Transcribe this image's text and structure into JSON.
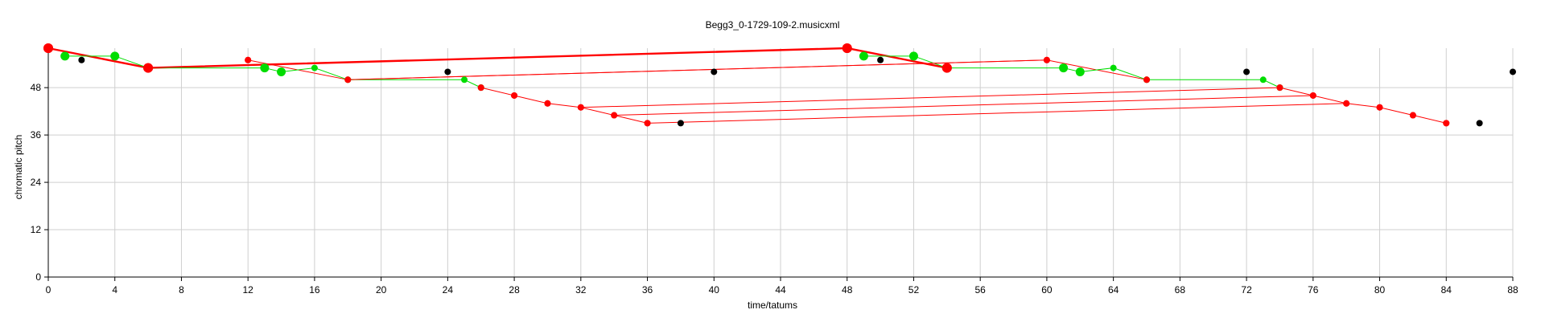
{
  "chart_data": {
    "type": "scatter",
    "title": "Begg3_0-1729-109-2.musicxml",
    "xlabel": "time/tatums",
    "ylabel": "chromatic pitch",
    "xlim": [
      0,
      88
    ],
    "ylim": [
      0,
      58
    ],
    "xticks": [
      0,
      4,
      8,
      12,
      16,
      20,
      24,
      28,
      32,
      36,
      40,
      44,
      48,
      52,
      56,
      60,
      64,
      68,
      72,
      76,
      80,
      84,
      88
    ],
    "yticks": [
      0,
      12,
      24,
      36,
      48
    ],
    "grid": true,
    "colors": {
      "red": "#ff0000",
      "green": "#00dd00",
      "black": "#000000"
    },
    "series": [
      {
        "color": "red",
        "values": [
          [
            0,
            58
          ],
          [
            6,
            53
          ],
          [
            48,
            58
          ],
          [
            54,
            53
          ]
        ],
        "marker": "large",
        "connect": "bold"
      },
      {
        "color": "red",
        "values": [
          [
            12,
            55
          ],
          [
            18,
            50
          ],
          [
            60,
            55
          ],
          [
            66,
            50
          ]
        ],
        "marker": "small",
        "connect": "thin"
      },
      {
        "color": "red",
        "values": [
          [
            26,
            48
          ],
          [
            28,
            46
          ],
          [
            30,
            44
          ],
          [
            32,
            43
          ],
          [
            34,
            41
          ],
          [
            36,
            39
          ]
        ],
        "marker": "small",
        "connect": "thin"
      },
      {
        "color": "red",
        "values": [
          [
            74,
            48
          ],
          [
            76,
            46
          ],
          [
            78,
            44
          ],
          [
            80,
            43
          ],
          [
            82,
            41
          ],
          [
            84,
            39
          ]
        ],
        "marker": "small",
        "connect": "thin"
      },
      {
        "color": "green",
        "values": [
          [
            1,
            56
          ],
          [
            4,
            56
          ],
          [
            6,
            53
          ],
          [
            13,
            53
          ],
          [
            14,
            52
          ],
          [
            16,
            53
          ],
          [
            18,
            50
          ],
          [
            25,
            50
          ],
          [
            26,
            48
          ]
        ],
        "marker": "mixed",
        "connect": "thin"
      },
      {
        "color": "green",
        "values": [
          [
            49,
            56
          ],
          [
            52,
            56
          ],
          [
            54,
            53
          ],
          [
            61,
            53
          ],
          [
            62,
            52
          ],
          [
            64,
            53
          ],
          [
            66,
            50
          ],
          [
            73,
            50
          ],
          [
            74,
            48
          ]
        ],
        "marker": "mixed",
        "connect": "thin"
      },
      {
        "color": "black",
        "values": [
          [
            2,
            55
          ],
          [
            24,
            52
          ],
          [
            38,
            39
          ],
          [
            40,
            52
          ],
          [
            50,
            55
          ],
          [
            72,
            52
          ],
          [
            86,
            39
          ],
          [
            88,
            52
          ]
        ],
        "marker": "small",
        "connect": "none"
      }
    ],
    "links": [
      [
        [
          6,
          53
        ],
        [
          48,
          58
        ]
      ],
      [
        [
          18,
          50
        ],
        [
          60,
          55
        ]
      ],
      [
        [
          32,
          43
        ],
        [
          74,
          48
        ]
      ],
      [
        [
          34,
          41
        ],
        [
          76,
          46
        ]
      ],
      [
        [
          36,
          39
        ],
        [
          78,
          44
        ]
      ]
    ],
    "green_large_points": [
      [
        1,
        56
      ],
      [
        4,
        56
      ],
      [
        13,
        53
      ],
      [
        14,
        52
      ],
      [
        49,
        56
      ],
      [
        52,
        56
      ],
      [
        61,
        53
      ],
      [
        62,
        52
      ]
    ]
  }
}
